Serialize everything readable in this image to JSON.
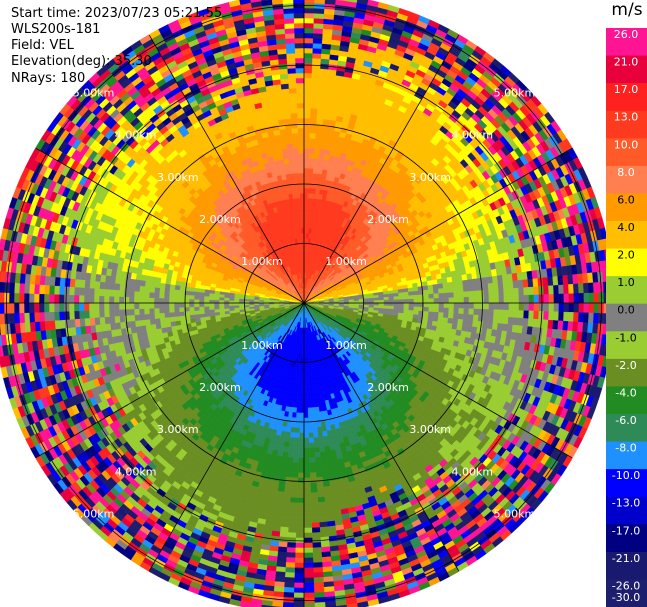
{
  "info": {
    "start_time": "Start time: 2023/07/23 05:21:55",
    "device": "WLS200s-181",
    "field": "Field: VEL",
    "elevation": "Elevation(deg): 35.30",
    "nrays": "NRays: 180"
  },
  "colorbar": {
    "unit": "m/s",
    "ticks": [
      "26.0",
      "21.0",
      "17.0",
      "13.0",
      "10.0",
      "8.0",
      "6.0",
      "4.0",
      "2.0",
      "1.0",
      "0.0",
      "-1.0",
      "-2.0",
      "-4.0",
      "-6.0",
      "-8.0",
      "-10.0",
      "-13.0",
      "-17.0",
      "-21.0",
      "-26.0",
      "-30.0"
    ],
    "colors": [
      "#ff1493",
      "#e8003c",
      "#ff2020",
      "#ff3a1e",
      "#ff5a28",
      "#ff7f50",
      "#ff9a00",
      "#ffbf00",
      "#ffff00",
      "#9acd32",
      "#808080",
      "#9acd32",
      "#6b8e23",
      "#228b22",
      "#2e8b57",
      "#1e90ff",
      "#0000ff",
      "#0000cd",
      "#000080",
      "#191970",
      "#1e1e6e"
    ]
  },
  "chart_data": {
    "type": "heatmap",
    "title": "",
    "field": "VEL",
    "unit": "m/s",
    "projection": "polar",
    "elevation_deg": 35.3,
    "n_rays": 180,
    "range_rings_km": [
      1.0,
      2.0,
      3.0,
      4.0,
      5.0
    ],
    "ring_labels": [
      "1.00km",
      "2.00km",
      "3.00km",
      "4.00km",
      "5.00km"
    ],
    "max_range_km": 5.2,
    "azimuth_spokes_deg": [
      0,
      30,
      60,
      90,
      120,
      150,
      180,
      210,
      240,
      270,
      300,
      330
    ],
    "value_range": [
      -30.0,
      30.0
    ],
    "pattern": {
      "positive_lobe_azimuth_deg": 0,
      "negative_lobe_azimuth_deg": 180,
      "peak_positive_ms": 10.0,
      "peak_negative_ms": -10.0,
      "noise_beyond_km": 4.0
    }
  }
}
